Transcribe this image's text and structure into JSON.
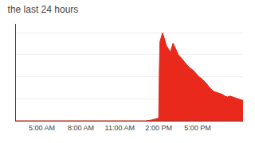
{
  "chart_data": {
    "type": "area",
    "title": "the last 24 hours",
    "x": [
      0,
      1,
      2,
      3,
      4,
      5,
      6,
      7,
      8,
      9,
      10,
      10.5,
      11,
      11.05,
      11.1,
      11.3,
      11.6,
      11.9,
      12.1,
      12.3,
      12.5,
      12.7,
      12.9,
      13.1,
      13.2,
      13.4,
      13.6,
      13.8,
      14.0,
      14.1,
      14.3,
      14.5,
      14.7,
      14.9,
      15.1,
      15.3,
      15.5,
      15.7,
      15.9,
      16.1,
      16.3,
      16.5,
      16.7,
      17.0,
      17.5
    ],
    "values": [
      0,
      0,
      0,
      0,
      0,
      0,
      0,
      0,
      0,
      0,
      0,
      1,
      3,
      60,
      90,
      100,
      85,
      78,
      88,
      82,
      75,
      72,
      68,
      65,
      63,
      60,
      58,
      55,
      52,
      50,
      48,
      45,
      42,
      38,
      35,
      33,
      32,
      31,
      30,
      28,
      27,
      28,
      27,
      25,
      23
    ],
    "color": "#e8291c",
    "xlim": [
      0,
      17.5
    ],
    "ylim": [
      0,
      110
    ],
    "xticks": [
      {
        "value": 2,
        "label": "5:00 AM"
      },
      {
        "value": 5,
        "label": "8:00 AM"
      },
      {
        "value": 8,
        "label": "11:00 AM"
      },
      {
        "value": 11,
        "label": "2:00 PM"
      },
      {
        "value": 14,
        "label": "5:00 PM"
      }
    ],
    "yticks": [
      25,
      50,
      75,
      100
    ],
    "grid": true,
    "tick_labels": "x"
  }
}
